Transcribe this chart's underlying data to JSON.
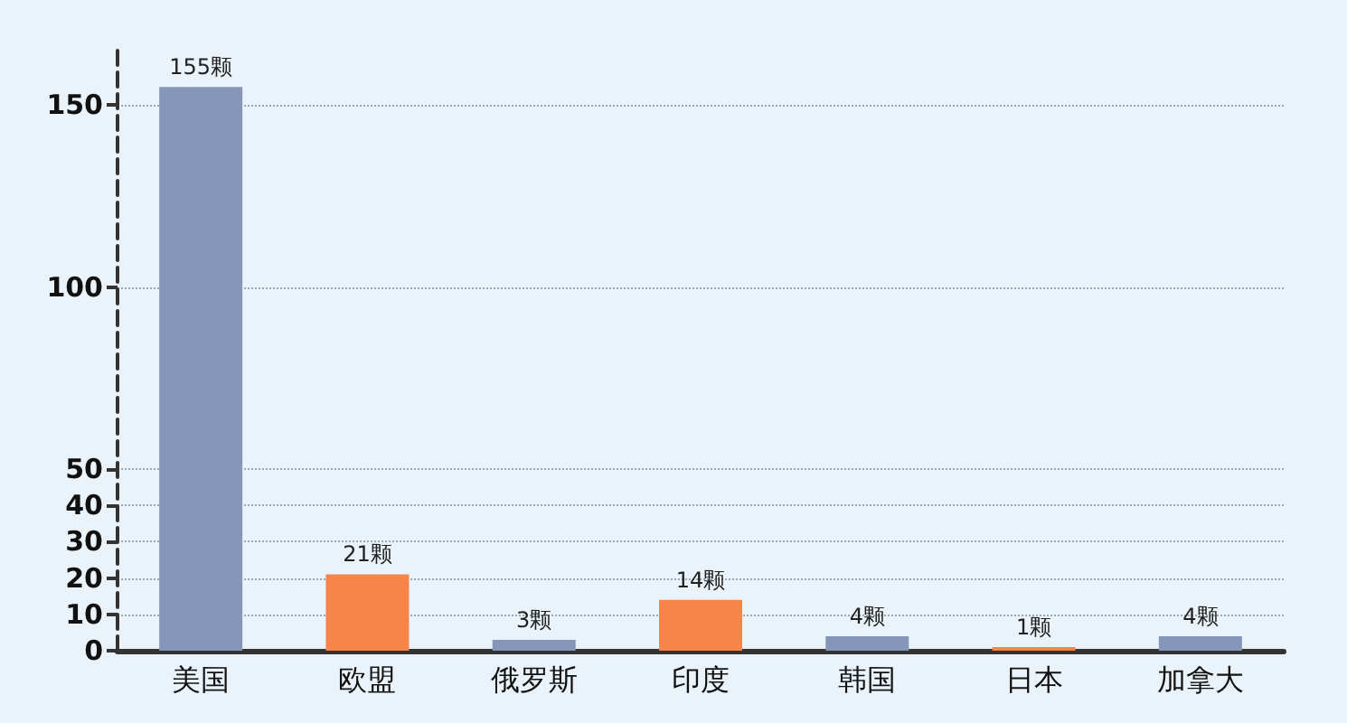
{
  "chart_data": {
    "type": "bar",
    "categories": [
      "美国",
      "欧盟",
      "俄罗斯",
      "印度",
      "韩国",
      "日本",
      "加拿大"
    ],
    "values": [
      155,
      21,
      3,
      14,
      4,
      1,
      4
    ],
    "colors": [
      "#8596b9",
      "#f5854a",
      "#8596b9",
      "#f5854a",
      "#8596b9",
      "#f5854a",
      "#8596b9"
    ],
    "value_labels": [
      "155颗",
      "21颗",
      "3颗",
      "14颗",
      "4颗",
      "1颗",
      "4颗"
    ],
    "ylim": [
      0,
      165
    ],
    "yticks": [
      0,
      10,
      20,
      30,
      40,
      50,
      100,
      150
    ],
    "grid": "y"
  }
}
